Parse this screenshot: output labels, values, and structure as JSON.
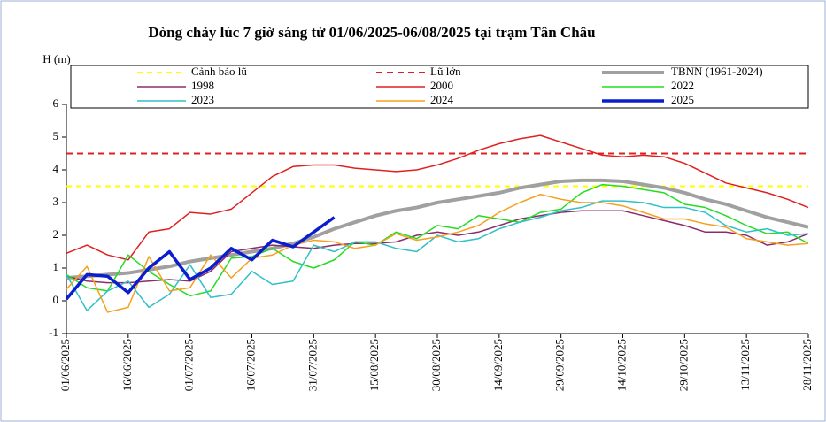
{
  "chart_data": {
    "type": "line",
    "title": "Dòng chảy lúc 7 giờ sáng từ 01/06/2025-06/08/2025 tại trạm Tân Châu",
    "y_label": "H (m)",
    "x": [
      "01/06/2025",
      "06/06/2025",
      "11/06/2025",
      "16/06/2025",
      "21/06/2025",
      "26/06/2025",
      "01/07/2025",
      "06/07/2025",
      "11/07/2025",
      "16/07/2025",
      "21/07/2025",
      "26/07/2025",
      "31/07/2025",
      "05/08/2025",
      "10/08/2025",
      "15/08/2025",
      "20/08/2025",
      "25/08/2025",
      "30/08/2025",
      "04/09/2025",
      "09/09/2025",
      "14/09/2025",
      "19/09/2025",
      "24/09/2025",
      "29/09/2025",
      "04/10/2025",
      "09/10/2025",
      "14/10/2025",
      "19/10/2025",
      "24/10/2025",
      "29/10/2025",
      "03/11/2025",
      "08/11/2025",
      "13/11/2025",
      "18/11/2025",
      "23/11/2025",
      "28/11/2025"
    ],
    "xlim": [
      "01/06/2025",
      "28/11/2025"
    ],
    "xticks": [
      "01/06/2025",
      "16/06/2025",
      "01/07/2025",
      "16/07/2025",
      "31/07/2025",
      "15/08/2025",
      "30/08/2025",
      "14/09/2025",
      "29/09/2025",
      "14/10/2025",
      "29/10/2025",
      "13/11/2025",
      "28/11/2025"
    ],
    "ylim": [
      -1,
      6
    ],
    "yticks": [
      -1,
      0,
      1,
      2,
      3,
      4,
      5,
      6
    ],
    "reference_lines": [
      {
        "name": "Cảnh báo lũ",
        "color": "#ffff00",
        "value": 3.5
      },
      {
        "name": "Lũ lớn",
        "color": "#e02020",
        "value": 4.5
      }
    ],
    "series": [
      {
        "name": "TBNN (1961-2024)",
        "color": "#a0a0a0",
        "values": [
          0.7,
          0.75,
          0.8,
          0.85,
          0.95,
          1.05,
          1.2,
          1.3,
          1.4,
          1.5,
          1.6,
          1.75,
          1.95,
          2.2,
          2.4,
          2.6,
          2.75,
          2.85,
          3.0,
          3.1,
          3.2,
          3.3,
          3.45,
          3.55,
          3.65,
          3.68,
          3.68,
          3.65,
          3.55,
          3.45,
          3.3,
          3.1,
          2.95,
          2.75,
          2.55,
          2.4,
          2.25
        ]
      },
      {
        "name": "1998",
        "color": "#8b2d6b",
        "values": [
          0.75,
          0.6,
          0.55,
          0.55,
          0.6,
          0.65,
          0.6,
          0.9,
          1.5,
          1.6,
          1.7,
          1.65,
          1.6,
          1.7,
          1.75,
          1.75,
          1.8,
          2.0,
          2.1,
          2.0,
          2.1,
          2.3,
          2.5,
          2.6,
          2.7,
          2.75,
          2.75,
          2.75,
          2.6,
          2.45,
          2.3,
          2.1,
          2.1,
          2.0,
          1.7,
          1.8,
          2.05
        ]
      },
      {
        "name": "2000",
        "color": "#e02020",
        "values": [
          1.45,
          1.7,
          1.4,
          1.25,
          2.1,
          2.2,
          2.7,
          2.65,
          2.8,
          3.3,
          3.8,
          4.1,
          4.15,
          4.15,
          4.05,
          4.0,
          3.95,
          4.0,
          4.15,
          4.35,
          4.6,
          4.8,
          4.95,
          5.05,
          4.85,
          4.65,
          4.45,
          4.4,
          4.45,
          4.4,
          4.2,
          3.9,
          3.6,
          3.45,
          3.3,
          3.1,
          2.85
        ]
      },
      {
        "name": "2022",
        "color": "#22dd22",
        "values": [
          0.8,
          0.4,
          0.3,
          1.4,
          0.9,
          0.5,
          0.15,
          0.3,
          1.3,
          1.35,
          1.6,
          1.2,
          1.0,
          1.25,
          1.8,
          1.7,
          2.1,
          1.9,
          2.3,
          2.2,
          2.6,
          2.5,
          2.4,
          2.7,
          2.8,
          3.3,
          3.55,
          3.5,
          3.4,
          3.3,
          2.95,
          2.85,
          2.6,
          2.3,
          2.05,
          2.1,
          1.75
        ]
      },
      {
        "name": "2023",
        "color": "#30c0c8",
        "values": [
          0.8,
          -0.3,
          0.3,
          0.6,
          -0.2,
          0.2,
          1.1,
          0.1,
          0.2,
          0.9,
          0.5,
          0.6,
          1.7,
          1.5,
          1.8,
          1.8,
          1.6,
          1.5,
          2.0,
          1.8,
          1.9,
          2.2,
          2.4,
          2.55,
          2.75,
          2.85,
          3.05,
          3.05,
          3.0,
          2.85,
          2.85,
          2.7,
          2.3,
          2.1,
          2.2,
          2.0,
          2.05
        ]
      },
      {
        "name": "2024",
        "color": "#f5a020",
        "values": [
          0.35,
          1.05,
          -0.35,
          -0.2,
          1.35,
          0.3,
          0.4,
          1.4,
          0.7,
          1.3,
          1.4,
          1.7,
          1.85,
          1.8,
          1.6,
          1.7,
          2.05,
          1.85,
          1.95,
          2.1,
          2.3,
          2.7,
          3.0,
          3.25,
          3.1,
          3.0,
          3.0,
          2.9,
          2.7,
          2.5,
          2.5,
          2.35,
          2.25,
          1.9,
          1.8,
          1.7,
          1.75
        ]
      },
      {
        "name": "2025",
        "color": "#0a1ed0",
        "values": [
          0.05,
          0.8,
          0.75,
          0.25,
          1.0,
          1.5,
          0.65,
          1.0,
          1.6,
          1.25,
          1.85,
          1.65,
          2.1,
          2.55,
          null,
          null,
          null,
          null,
          null,
          null,
          null,
          null,
          null,
          null,
          null,
          null,
          null,
          null,
          null,
          null,
          null,
          null,
          null,
          null,
          null,
          null,
          null
        ]
      }
    ]
  }
}
